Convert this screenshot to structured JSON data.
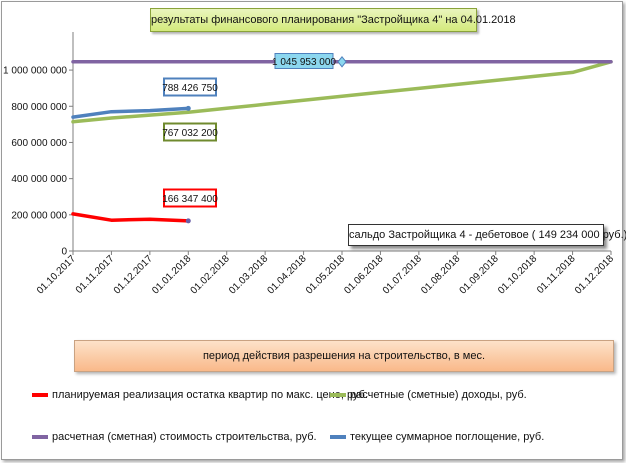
{
  "title": "результаты финансового планирования \"Застройщика  4\" на 04.01.2018",
  "balance_note": "сальдо Застройщика  4 - дебетовое ( 149 234 000 руб.)",
  "period_label": "период  действия разрешения на строительство, в мес.",
  "colors": {
    "sales": "#ff0000",
    "income": "#9bbb59",
    "cost": "#8064a2",
    "absorption": "#4f81bd"
  },
  "chart_data": {
    "type": "line",
    "x": [
      "01.10.2017",
      "01.11.2017",
      "01.12.2017",
      "01.01.2018",
      "01.02.2018",
      "01.03.2018",
      "01.04.2018",
      "01.05.2018",
      "01.06.2018",
      "01.07.2018",
      "01.08.2018",
      "01.09.2018",
      "01.10.2018",
      "01.11.2018",
      "01.12.2018"
    ],
    "ylim": [
      0,
      1100000000
    ],
    "yticks": [
      0,
      200000000,
      400000000,
      600000000,
      800000000,
      1000000000
    ],
    "ytick_labels": [
      "0",
      "200 000 000",
      "400 000 000",
      "600 000 000",
      "800 000 000",
      "1 000 000 000"
    ],
    "grid": "horizontal-none",
    "legend_placement": "bottom",
    "series": [
      {
        "key": "sales",
        "name": "планируемая реализация остатка квартир по макс. цене, руб.",
        "values": [
          205000000,
          170000000,
          176000000,
          166347400,
          null,
          null,
          null,
          null,
          null,
          null,
          null,
          null,
          null,
          null,
          null
        ]
      },
      {
        "key": "income",
        "name": "расчетные (сметные) доходы, руб.",
        "values": [
          714000000,
          735000000,
          751000000,
          767032200,
          789000000,
          811000000,
          833000000,
          855000000,
          877000000,
          899000000,
          921000000,
          943000000,
          965000000,
          987000000,
          1045953000
        ]
      },
      {
        "key": "cost",
        "name": "расчетная (сметная) стоимость строительства, руб.",
        "values": [
          1045953000,
          1045953000,
          1045953000,
          1045953000,
          1045953000,
          1045953000,
          1045953000,
          1045953000,
          1045953000,
          1045953000,
          1045953000,
          1045953000,
          1045953000,
          1045953000,
          1045953000
        ]
      },
      {
        "key": "absorption",
        "name": "текущее суммарное поглощение, руб.",
        "values": [
          740000000,
          770000000,
          776000000,
          788426750,
          null,
          null,
          null,
          null,
          null,
          null,
          null,
          null,
          null,
          null,
          null
        ]
      }
    ],
    "annotations": [
      {
        "key": "absorption_label",
        "text": "788 426 750",
        "x_index": 3,
        "value": 788426750
      },
      {
        "key": "income_label",
        "text": "767 032 200",
        "x_index": 3,
        "value": 767032200
      },
      {
        "key": "sales_label",
        "text": "166 347 400",
        "x_index": 3,
        "value": 166347400
      },
      {
        "key": "cost_label",
        "text": "1 045 953 000",
        "x_index": 7,
        "value": 1045953000
      }
    ]
  },
  "legend": [
    {
      "key": "sales",
      "label": "планируемая реализация остатка квартир по макс. цене, руб."
    },
    {
      "key": "income",
      "label": "расчетные (сметные) доходы, руб."
    },
    {
      "key": "cost",
      "label": "расчетная (сметная) стоимость строительства, руб."
    },
    {
      "key": "absorption",
      "label": "текущее суммарное поглощение, руб."
    }
  ]
}
